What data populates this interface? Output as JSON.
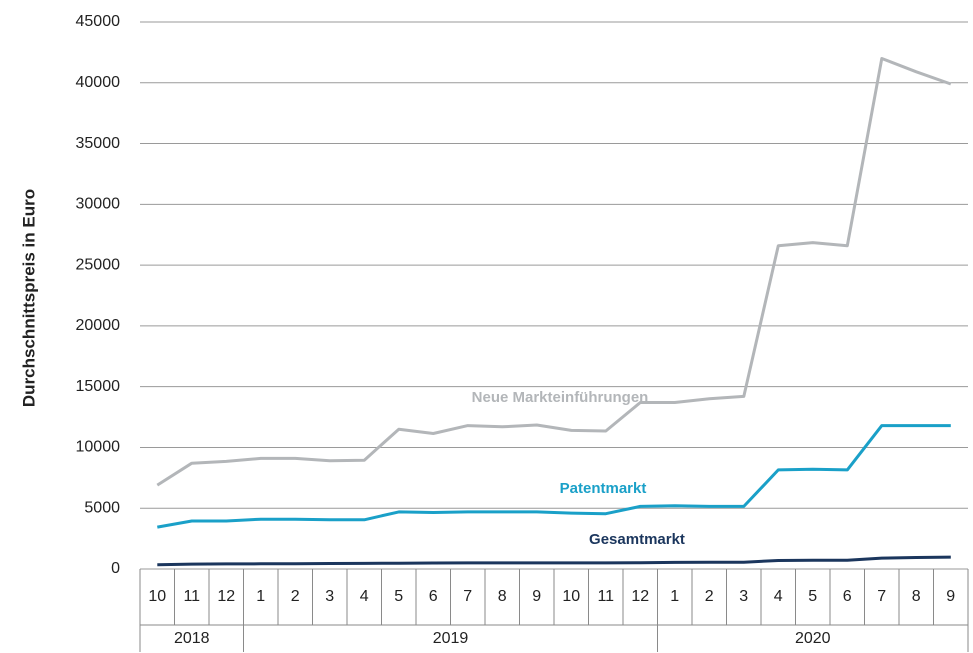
{
  "chart_data": {
    "type": "line",
    "y_label": "Durchschnittspreis in Euro",
    "categories": [
      "10",
      "11",
      "12",
      "1",
      "2",
      "3",
      "4",
      "5",
      "6",
      "7",
      "8",
      "9",
      "10",
      "11",
      "12",
      "1",
      "2",
      "3",
      "4",
      "5",
      "6",
      "7",
      "8",
      "9"
    ],
    "x_groups": [
      "2018",
      "2019",
      "2020"
    ],
    "series": [
      {
        "name": "Neue Markteinführungen",
        "color": "#b3b6b9",
        "values": [
          6900,
          8700,
          8850,
          9100,
          9100,
          8900,
          8950,
          11500,
          11150,
          11800,
          11700,
          11850,
          11400,
          11350,
          13700,
          13700,
          14000,
          14200,
          26600,
          26850,
          26600,
          42000,
          40900,
          39900
        ]
      },
      {
        "name": "Patentmarkt",
        "color": "#1aa0c8",
        "values": [
          3450,
          3950,
          3950,
          4100,
          4100,
          4050,
          4050,
          4700,
          4650,
          4700,
          4700,
          4700,
          4600,
          4550,
          5150,
          5200,
          5150,
          5150,
          8150,
          8200,
          8150,
          11800,
          11800,
          11800
        ]
      },
      {
        "name": "Gesamtmarkt",
        "color": "#1b365d",
        "values": [
          350,
          400,
          420,
          430,
          440,
          450,
          460,
          480,
          490,
          500,
          500,
          500,
          500,
          500,
          520,
          540,
          550,
          560,
          700,
          720,
          720,
          900,
          950,
          980
        ]
      }
    ],
    "ylim": [
      0,
      45000
    ],
    "yticks": [
      0,
      5000,
      10000,
      15000,
      20000,
      25000,
      30000,
      35000,
      40000,
      45000
    ],
    "grid": true
  }
}
